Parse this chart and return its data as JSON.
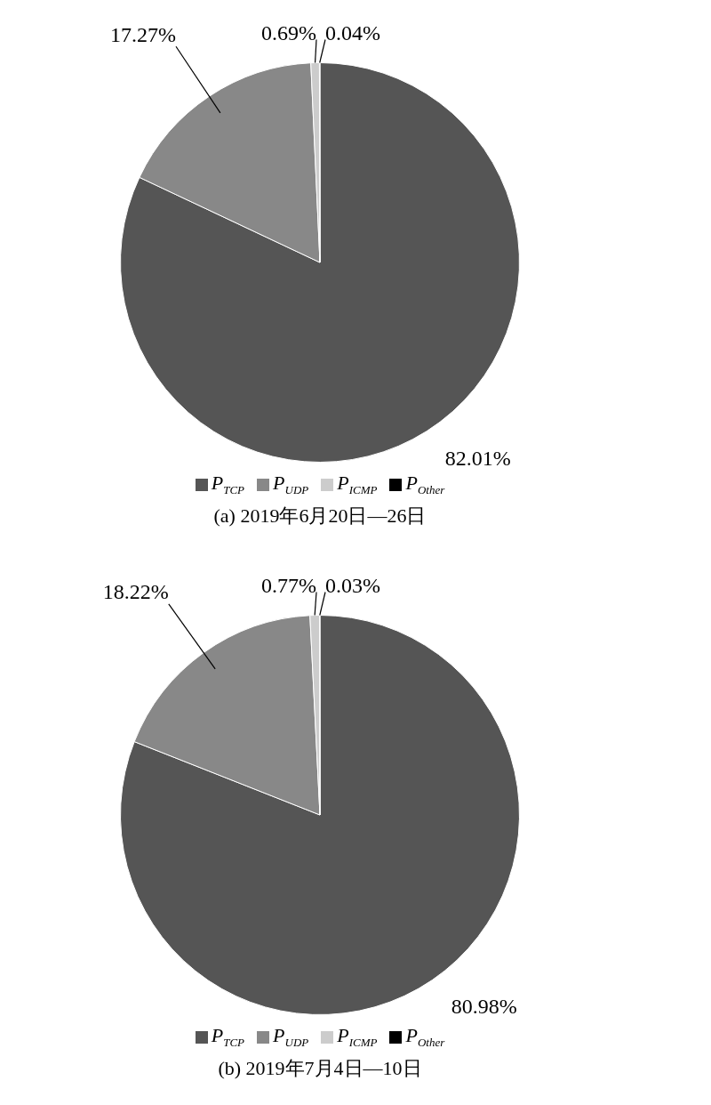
{
  "chart_data": [
    {
      "type": "pie",
      "title": "(a) 2019年6月20日—26日",
      "categories": [
        "P$_{TCP}$",
        "P$_{UDP}$",
        "P$_{ICMP}$",
        "P$_{Other}$"
      ],
      "values": [
        82.01,
        17.27,
        0.69,
        0.04
      ],
      "colors": [
        "#555555",
        "#888888",
        "#cccccc",
        "#000000"
      ],
      "value_labels": [
        "82.01%",
        "17.27%",
        "0.69%",
        "0.04%"
      ],
      "legend": "bottom"
    },
    {
      "type": "pie",
      "title": "(b) 2019年7月4日—10日",
      "categories": [
        "P$_{TCP}$",
        "P$_{UDP}$",
        "P$_{ICMP}$",
        "P$_{Other}$"
      ],
      "values": [
        80.98,
        18.22,
        0.77,
        0.03
      ],
      "colors": [
        "#555555",
        "#888888",
        "#cccccc",
        "#000000"
      ],
      "value_labels": [
        "80.98%",
        "18.22%",
        "0.77%",
        "0.03%"
      ],
      "legend": "bottom"
    }
  ]
}
